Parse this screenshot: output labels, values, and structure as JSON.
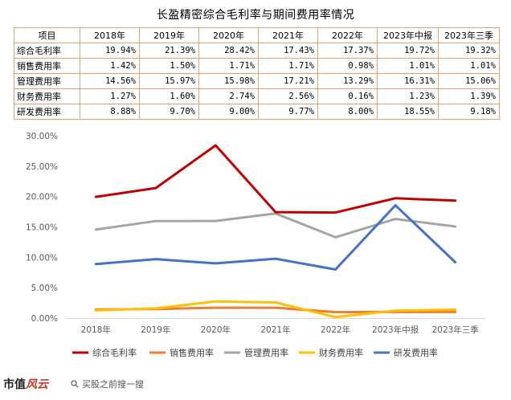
{
  "page": {
    "title": "长盈精密综合毛利率与期间费用率情况",
    "footer_brand": "市值",
    "footer_brand_script": "风云",
    "search_text": "买股之前搜一搜"
  },
  "table": {
    "header": [
      "项目",
      "2018年",
      "2019年",
      "2020年",
      "2021年",
      "2022年",
      "2023年中报",
      "2023年三季"
    ],
    "rows": [
      {
        "label": "综合毛利率",
        "cells": [
          "19.94%",
          "21.39%",
          "28.42%",
          "17.43%",
          "17.37%",
          "19.72%",
          "19.32%"
        ]
      },
      {
        "label": "销售费用率",
        "cells": [
          "1.42%",
          "1.50%",
          "1.71%",
          "1.71%",
          "0.98%",
          "1.01%",
          "1.01%"
        ]
      },
      {
        "label": "管理费用率",
        "cells": [
          "14.56%",
          "15.97%",
          "15.98%",
          "17.21%",
          "13.29%",
          "16.31%",
          "15.06%"
        ]
      },
      {
        "label": "财务费用率",
        "cells": [
          "1.27%",
          "1.60%",
          "2.74%",
          "2.56%",
          "0.16%",
          "1.23%",
          "1.39%"
        ]
      },
      {
        "label": "研发费用率",
        "cells": [
          "8.88%",
          "9.70%",
          "9.00%",
          "9.77%",
          "8.00%",
          "18.55%",
          "9.18%"
        ]
      }
    ]
  },
  "chart_data": {
    "type": "line",
    "categories": [
      "2018年",
      "2019年",
      "2020年",
      "2021年",
      "2022年",
      "2023年中报",
      "2023年三季"
    ],
    "ylim": [
      0,
      30
    ],
    "yticks": [
      "0.00%",
      "5.00%",
      "10.00%",
      "15.00%",
      "20.00%",
      "25.00%",
      "30.00%"
    ],
    "grid": false,
    "legend_position": "bottom",
    "series": [
      {
        "name": "综合毛利率",
        "color": "#c00000",
        "values": [
          19.94,
          21.39,
          28.42,
          17.43,
          17.37,
          19.72,
          19.32
        ]
      },
      {
        "name": "销售费用率",
        "color": "#ed7d31",
        "values": [
          1.42,
          1.5,
          1.71,
          1.71,
          0.98,
          1.01,
          1.01
        ]
      },
      {
        "name": "管理费用率",
        "color": "#a5a5a5",
        "values": [
          14.56,
          15.97,
          15.98,
          17.21,
          13.29,
          16.31,
          15.06
        ]
      },
      {
        "name": "财务费用率",
        "color": "#ffc000",
        "values": [
          1.27,
          1.6,
          2.74,
          2.56,
          0.16,
          1.23,
          1.39
        ]
      },
      {
        "name": "研发费用率",
        "color": "#4472c4",
        "values": [
          8.88,
          9.7,
          9.0,
          9.77,
          8.0,
          18.55,
          9.18
        ]
      }
    ]
  }
}
